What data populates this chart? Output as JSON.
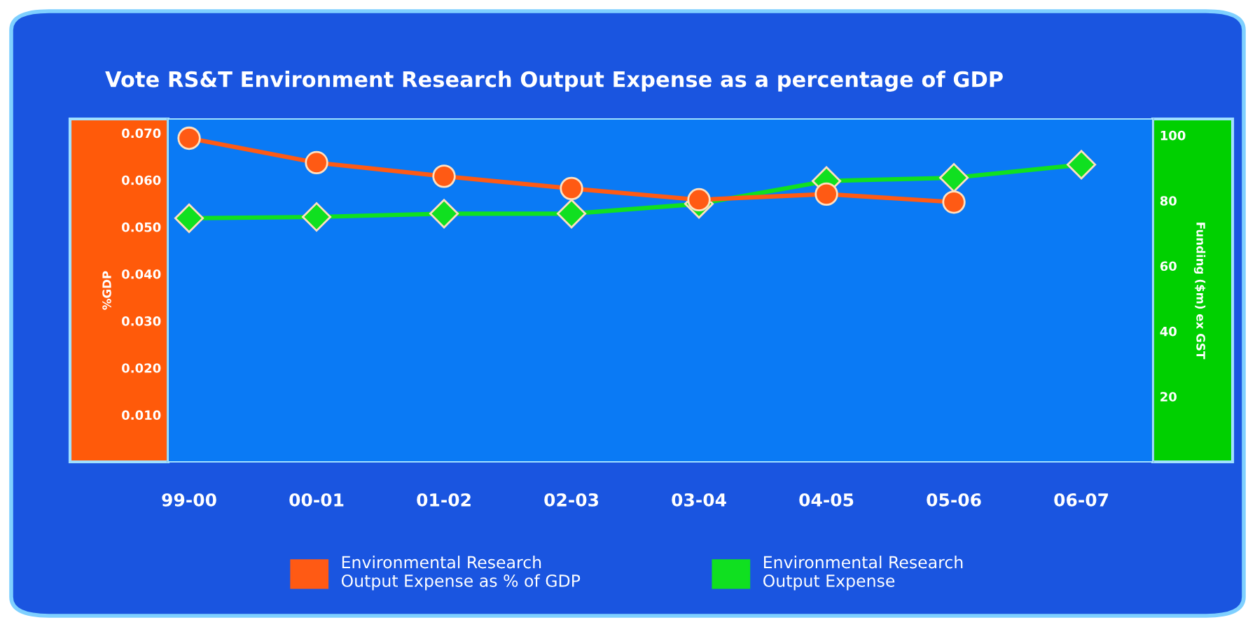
{
  "chart_data": {
    "type": "line",
    "title": "Vote RS&T Environment Research Output Expense as a percentage of GDP",
    "ylabel": "%GDP",
    "y2label": "Funding ($m) ex GST",
    "categories": [
      "99-00",
      "00-01",
      "01-02",
      "02-03",
      "03-04",
      "04-05",
      "05-06",
      "06-07"
    ],
    "series": [
      {
        "name": "Environmental Research\nOutput Expense as % of GDP",
        "color": "#ff5a14",
        "marker": "circle",
        "values": [
          0.0689,
          0.0637,
          0.0608,
          0.0582,
          0.0558,
          0.057,
          0.0553,
          null
        ]
      },
      {
        "name": "Environmental Research\nOutput Expense",
        "color": "#10e020",
        "marker": "diamond",
        "axis": "y2",
        "values": [
          74.6,
          75,
          76,
          76,
          79,
          86,
          87,
          91
        ]
      }
    ],
    "ylim": [
      0,
      0.073
    ],
    "yticks": [
      {
        "value": 0.01,
        "label": "0.010"
      },
      {
        "value": 0.02,
        "label": "0.020"
      },
      {
        "value": 0.03,
        "label": "0.030"
      },
      {
        "value": 0.04,
        "label": "0.040"
      },
      {
        "value": 0.05,
        "label": "0.050"
      },
      {
        "value": 0.06,
        "label": "0.060"
      },
      {
        "value": 0.07,
        "label": "0.070"
      }
    ],
    "y2lim": [
      0,
      105
    ],
    "y2ticks": [
      20,
      40,
      60,
      80,
      100
    ],
    "grid": false,
    "legend": "bottom"
  }
}
